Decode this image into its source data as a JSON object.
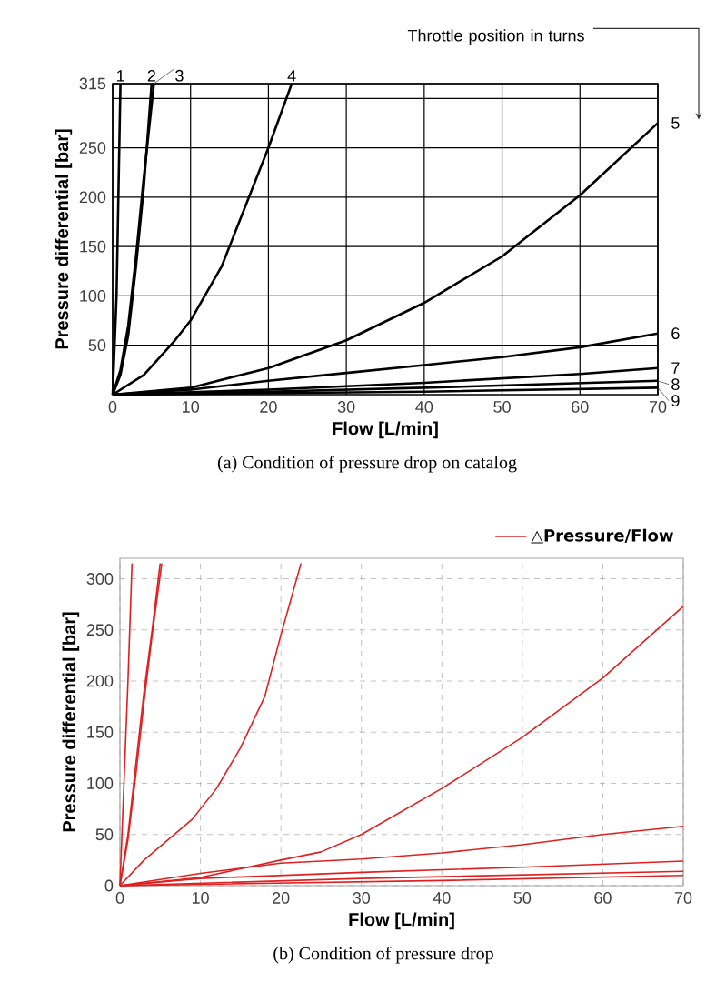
{
  "chart_data": [
    {
      "type": "line",
      "title": "(a)  Condition of pressure drop on catalog",
      "xlabel": "Flow [L/min]",
      "ylabel": "Pressure differential [bar]",
      "xlim": [
        0,
        70
      ],
      "ylim": [
        0,
        315
      ],
      "xticks": [
        0,
        10,
        20,
        30,
        40,
        50,
        60,
        70
      ],
      "yticks": [
        50,
        100,
        150,
        200,
        250,
        {
          "value": 300,
          "label": null
        },
        315
      ],
      "grid": true,
      "annotations": [
        "Throttle position in turns"
      ],
      "series": [
        {
          "name": "1",
          "color": "#000000",
          "x": [
            0,
            0.5,
            1
          ],
          "values": [
            0,
            100,
            315
          ]
        },
        {
          "name": "2",
          "color": "#000000",
          "x": [
            0,
            1,
            2,
            3,
            4,
            5
          ],
          "values": [
            0,
            20,
            60,
            130,
            210,
            315
          ]
        },
        {
          "name": "3",
          "color": "#000000",
          "x": [
            0,
            1,
            2,
            3,
            4,
            5.3
          ],
          "values": [
            0,
            25,
            70,
            140,
            220,
            315
          ]
        },
        {
          "name": "4",
          "color": "#000000",
          "x": [
            0,
            4,
            8,
            10,
            14,
            18,
            20,
            23
          ],
          "values": [
            0,
            20,
            55,
            75,
            130,
            210,
            250,
            315
          ]
        },
        {
          "name": "5",
          "color": "#000000",
          "x": [
            0,
            10,
            20,
            30,
            40,
            50,
            60,
            70
          ],
          "values": [
            0,
            7,
            27,
            55,
            93,
            140,
            202,
            275
          ]
        },
        {
          "name": "6",
          "color": "#000000",
          "x": [
            0,
            10,
            20,
            30,
            40,
            50,
            60,
            70
          ],
          "values": [
            0,
            5,
            14,
            22,
            30,
            38,
            48,
            62
          ]
        },
        {
          "name": "7",
          "color": "#000000",
          "x": [
            0,
            20,
            40,
            60,
            70
          ],
          "values": [
            0,
            5,
            12,
            21,
            27
          ]
        },
        {
          "name": "8",
          "color": "#000000",
          "x": [
            0,
            20,
            40,
            70
          ],
          "values": [
            0,
            3,
            7,
            14
          ]
        },
        {
          "name": "9",
          "color": "#000000",
          "x": [
            0,
            40,
            70
          ],
          "values": [
            0,
            3,
            7
          ]
        }
      ]
    },
    {
      "type": "line",
      "title": "(b)  Condition of pressure drop",
      "xlabel": "Flow [L/min]",
      "ylabel": "Pressure differential [bar]",
      "xlim": [
        0,
        70
      ],
      "ylim": [
        0,
        320
      ],
      "xticks": [
        0,
        10,
        20,
        30,
        40,
        50,
        60,
        70
      ],
      "yticks": [
        0,
        50,
        100,
        150,
        200,
        250,
        300
      ],
      "grid": true,
      "legend": "top right",
      "series": [
        {
          "name": "△Pressure/Flow",
          "color": "#e02020",
          "x": [
            0,
            0.5,
            1,
            1.5
          ],
          "values": [
            0,
            100,
            200,
            315
          ]
        },
        {
          "color": "#e02020",
          "x": [
            0,
            1,
            2,
            3,
            4,
            5
          ],
          "values": [
            0,
            50,
            120,
            190,
            250,
            315
          ]
        },
        {
          "color": "#e02020",
          "x": [
            0,
            1,
            2,
            3,
            4,
            5.2
          ],
          "values": [
            0,
            45,
            110,
            180,
            245,
            315
          ]
        },
        {
          "color": "#e02020",
          "x": [
            0,
            3,
            6,
            9,
            12,
            15,
            18,
            20,
            22.5
          ],
          "values": [
            0,
            25,
            45,
            65,
            95,
            135,
            185,
            245,
            315
          ]
        },
        {
          "color": "#e02020",
          "x": [
            0,
            10,
            20,
            25,
            30,
            40,
            50,
            60,
            70
          ],
          "values": [
            0,
            8,
            25,
            33,
            50,
            95,
            145,
            203,
            273
          ]
        },
        {
          "color": "#e02020",
          "x": [
            0,
            10,
            20,
            30,
            40,
            50,
            60,
            70
          ],
          "values": [
            0,
            12,
            22,
            26,
            32,
            40,
            50,
            58
          ]
        },
        {
          "color": "#e02020",
          "x": [
            0,
            10,
            30,
            50,
            70
          ],
          "values": [
            0,
            7,
            13,
            18,
            24
          ]
        },
        {
          "color": "#e02020",
          "x": [
            0,
            30,
            70
          ],
          "values": [
            0,
            7,
            14
          ]
        },
        {
          "color": "#e02020",
          "x": [
            0,
            40,
            70
          ],
          "values": [
            0,
            5,
            10
          ]
        }
      ]
    }
  ]
}
